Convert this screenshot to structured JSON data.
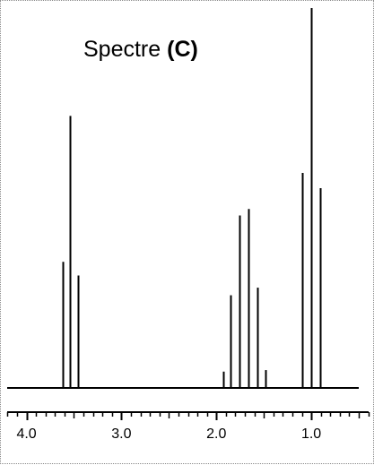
{
  "chart_data": {
    "type": "bar",
    "title": "Spectre",
    "title_label": "(C)",
    "xlabel": "",
    "ylabel": "",
    "x_reversed": true,
    "xlim": [
      4.27,
      0.33
    ],
    "ylim": [
      0,
      100
    ],
    "grid": false,
    "ticks": [
      4.0,
      3.0,
      2.0,
      1.0
    ],
    "tick_labels": [
      "4.0",
      "3.0",
      "2.0",
      "1.0"
    ],
    "peaks": [
      {
        "x": 3.62,
        "value": 33.2
      },
      {
        "x": 3.54,
        "value": 71.6
      },
      {
        "x": 3.46,
        "value": 29.6
      },
      {
        "x": 1.93,
        "value": 4.3
      },
      {
        "x": 1.85,
        "value": 24.4
      },
      {
        "x": 1.76,
        "value": 45.4
      },
      {
        "x": 1.66,
        "value": 47.1
      },
      {
        "x": 1.57,
        "value": 26.4
      },
      {
        "x": 1.48,
        "value": 4.7
      },
      {
        "x": 1.1,
        "value": 56.6
      },
      {
        "x": 1.0,
        "value": 100
      },
      {
        "x": 0.91,
        "value": 52.6
      }
    ]
  }
}
